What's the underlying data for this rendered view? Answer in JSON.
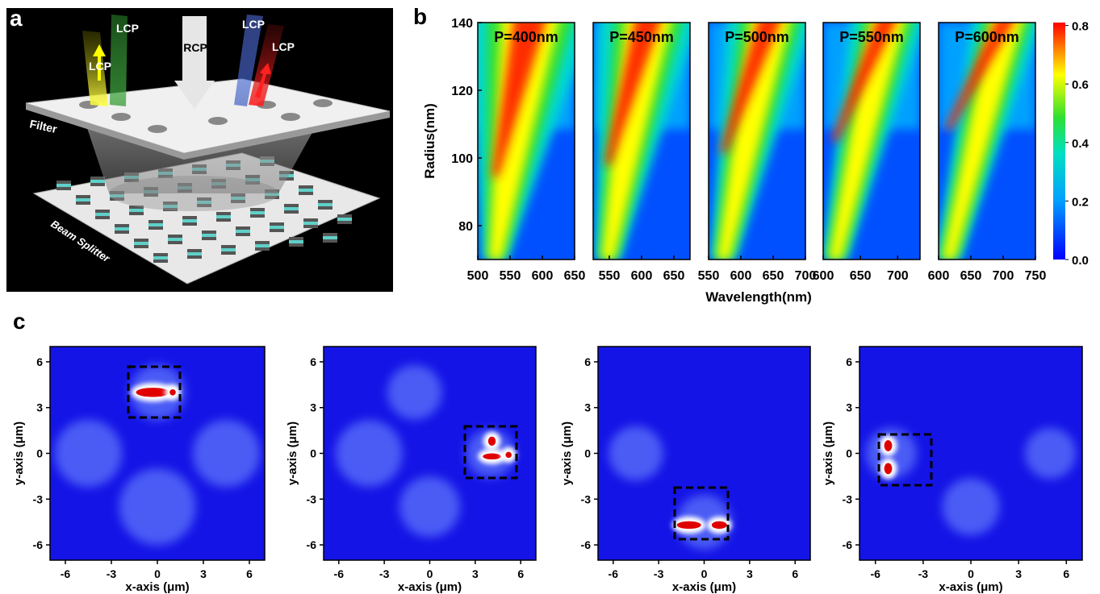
{
  "panel_labels": {
    "a": "a",
    "b": "b",
    "c": "c"
  },
  "illustration": {
    "beams": [
      "LCP",
      "LCP",
      "RCP",
      "LCP",
      "LCP"
    ],
    "filter": "Filter",
    "beam_splitter": "Beam Splitter"
  },
  "chart_data": [
    {
      "type": "heatmap",
      "title": "P=400nm",
      "y_label": "Radius(nm)",
      "xlim": [
        500,
        650
      ],
      "xticks": [
        500,
        550,
        600,
        650
      ],
      "ylim": [
        70,
        140
      ],
      "yticks": [
        80,
        100,
        120,
        140
      ]
    },
    {
      "type": "heatmap",
      "title": "P=450nm",
      "xlim": [
        525,
        675
      ],
      "xticks": [
        550,
        600,
        650
      ]
    },
    {
      "type": "heatmap",
      "title": "P=500nm",
      "x_label": "Wavelength(nm)",
      "xlim": [
        550,
        700
      ],
      "xticks": [
        550,
        600,
        650,
        700
      ]
    },
    {
      "type": "heatmap",
      "title": "P=550nm",
      "xlim": [
        600,
        730
      ],
      "xticks": [
        600,
        650,
        700
      ]
    },
    {
      "type": "heatmap",
      "title": "P=600nm",
      "xlim": [
        600,
        750
      ],
      "xticks": [
        600,
        650,
        700,
        750
      ],
      "colorbar": {
        "lim": [
          0,
          0.81
        ],
        "ticks": [
          {
            "value": 0,
            "label": "0.0"
          },
          0.2,
          0.4,
          0.6,
          0.8
        ]
      }
    },
    {
      "type": "field-map",
      "x_label": "x-axis (μm)",
      "y_label": "y-axis (μm)",
      "xlim": [
        -7,
        7
      ],
      "ylim": [
        -7,
        7
      ],
      "xticks": [
        -6,
        -3,
        0,
        3,
        6
      ],
      "yticks": [
        -6,
        -3,
        0,
        3,
        6
      ]
    },
    {
      "type": "field-map",
      "x_label": "x-axis (μm)",
      "y_label": "y-axis (μm)",
      "xlim": [
        -7,
        7
      ],
      "ylim": [
        -7,
        7
      ],
      "xticks": [
        -6,
        -3,
        0,
        3,
        6
      ],
      "yticks": [
        -6,
        -3,
        0,
        3,
        6
      ]
    },
    {
      "type": "field-map",
      "x_label": "x-axis (μm)",
      "y_label": "y-axis (μm)",
      "xlim": [
        -7,
        7
      ],
      "ylim": [
        -7,
        7
      ],
      "xticks": [
        -6,
        -3,
        0,
        3,
        6
      ],
      "yticks": [
        -6,
        -3,
        0,
        3,
        6
      ]
    },
    {
      "type": "field-map",
      "x_label": "x-axis (μm)",
      "y_label": "y-axis (μm)",
      "xlim": [
        -7,
        7
      ],
      "ylim": [
        -7,
        7
      ],
      "xticks": [
        -6,
        -3,
        0,
        3,
        6
      ],
      "yticks": [
        -6,
        -3,
        0,
        3,
        6
      ]
    }
  ]
}
